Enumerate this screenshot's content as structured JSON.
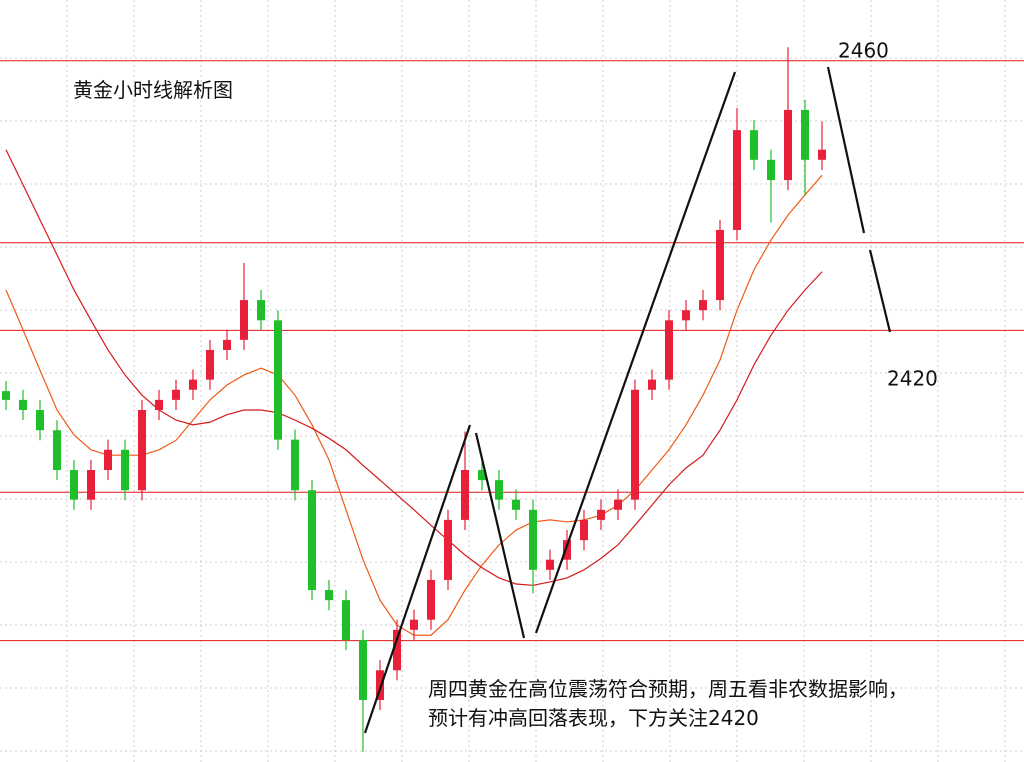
{
  "chart_data": {
    "type": "candlestick",
    "title": "黄金小时线解析图",
    "ylim": [
      2356,
      2469
    ],
    "up_color": "#e8203a",
    "down_color": "#1fbf2a",
    "open": [
      2411.0,
      2409.7,
      2408.2,
      2405.2,
      2399.3,
      2394.9,
      2399.3,
      2402.3,
      2396.3,
      2408.2,
      2409.7,
      2411.2,
      2412.7,
      2417.1,
      2418.6,
      2424.5,
      2421.5,
      2403.8,
      2396.3,
      2381.5,
      2380.0,
      2374.1,
      2365.2,
      2369.6,
      2375.6,
      2377.1,
      2383.0,
      2391.9,
      2399.3,
      2397.8,
      2394.9,
      2393.4,
      2384.5,
      2386.0,
      2388.9,
      2391.9,
      2393.4,
      2394.9,
      2411.2,
      2412.7,
      2421.5,
      2423.0,
      2424.5,
      2434.9,
      2449.7,
      2445.3,
      2442.3,
      2452.7,
      2445.3
    ],
    "high": [
      2412.5,
      2411.2,
      2409.7,
      2406.7,
      2400.8,
      2400.8,
      2403.8,
      2403.8,
      2409.7,
      2411.2,
      2412.7,
      2414.2,
      2418.6,
      2420.1,
      2430.0,
      2426.0,
      2423.0,
      2405.3,
      2397.8,
      2383.0,
      2381.5,
      2375.6,
      2371.1,
      2377.1,
      2378.6,
      2384.5,
      2393.4,
      2405.0,
      2400.8,
      2399.3,
      2396.4,
      2394.9,
      2387.5,
      2390.4,
      2393.4,
      2394.9,
      2396.4,
      2412.7,
      2414.2,
      2423.0,
      2424.5,
      2426.0,
      2436.4,
      2453.0,
      2451.2,
      2446.8,
      2462.0,
      2454.2,
      2451.0
    ],
    "low": [
      2408.2,
      2406.7,
      2403.7,
      2397.8,
      2393.4,
      2393.4,
      2397.8,
      2394.8,
      2394.8,
      2406.7,
      2408.2,
      2409.7,
      2411.2,
      2415.6,
      2417.1,
      2420.0,
      2402.3,
      2394.8,
      2380.0,
      2378.5,
      2372.6,
      2357.5,
      2363.7,
      2368.1,
      2374.1,
      2375.6,
      2381.5,
      2390.4,
      2396.3,
      2393.4,
      2391.9,
      2381.0,
      2383.0,
      2384.5,
      2387.4,
      2390.4,
      2391.9,
      2393.4,
      2409.7,
      2411.2,
      2420.0,
      2421.5,
      2423.0,
      2433.4,
      2443.8,
      2436.0,
      2440.8,
      2440.0,
      2443.8
    ],
    "close": [
      2409.7,
      2408.2,
      2405.2,
      2399.3,
      2394.9,
      2399.3,
      2402.3,
      2396.3,
      2408.2,
      2409.7,
      2411.2,
      2412.7,
      2417.1,
      2418.6,
      2424.5,
      2421.5,
      2403.8,
      2396.3,
      2381.5,
      2380.0,
      2374.1,
      2365.2,
      2369.6,
      2375.6,
      2377.1,
      2383.0,
      2391.9,
      2399.3,
      2397.8,
      2394.9,
      2393.4,
      2384.5,
      2386.0,
      2388.9,
      2391.9,
      2393.4,
      2394.9,
      2411.2,
      2412.7,
      2421.5,
      2423.0,
      2424.5,
      2434.9,
      2449.7,
      2445.3,
      2442.3,
      2452.7,
      2445.3,
      2446.8
    ],
    "moving_averages": [
      {
        "color": "#f05a14",
        "values": [
          2426.0,
          2420.1,
          2414.1,
          2408.2,
          2404.5,
          2402.3,
          2401.5,
          2401.5,
          2401.5,
          2402.3,
          2403.7,
          2406.7,
          2409.7,
          2411.9,
          2413.4,
          2414.4,
          2413.4,
          2410.4,
          2406.0,
          2400.8,
          2393.4,
          2386.0,
          2380.0,
          2376.3,
          2374.8,
          2374.8,
          2377.1,
          2381.5,
          2385.2,
          2388.2,
          2390.4,
          2391.6,
          2391.9,
          2391.6,
          2391.9,
          2392.6,
          2394.1,
          2396.3,
          2399.3,
          2402.3,
          2406.0,
          2410.4,
          2415.6,
          2423.0,
          2429.0,
          2433.4,
          2437.1,
          2440.1,
          2443.0
        ]
      },
      {
        "color": "#d41a1a",
        "values": [
          2446.8,
          2441.6,
          2436.4,
          2431.2,
          2426.0,
          2421.5,
          2417.1,
          2413.4,
          2410.4,
          2408.2,
          2406.7,
          2406.0,
          2406.4,
          2407.5,
          2408.2,
          2408.2,
          2407.8,
          2406.7,
          2405.5,
          2404.0,
          2402.3,
          2400.0,
          2397.8,
          2395.6,
          2393.4,
          2391.1,
          2388.9,
          2386.7,
          2384.8,
          2383.3,
          2382.4,
          2382.2,
          2382.7,
          2383.3,
          2384.5,
          2386.2,
          2388.2,
          2391.1,
          2394.1,
          2397.1,
          2399.6,
          2401.5,
          2405.2,
          2409.7,
          2414.9,
          2419.3,
          2423.0,
          2426.0,
          2428.7
        ]
      }
    ],
    "levels": [
      2460,
      2433,
      2420,
      2396,
      2374
    ],
    "level_color": "#e01818",
    "labeled_levels": [
      2460,
      2420
    ],
    "note": [
      "周四黄金在高位震荡符合预期，周五看非农数据影响，",
      "预计有冲高回落表现，下方关注2420"
    ]
  }
}
